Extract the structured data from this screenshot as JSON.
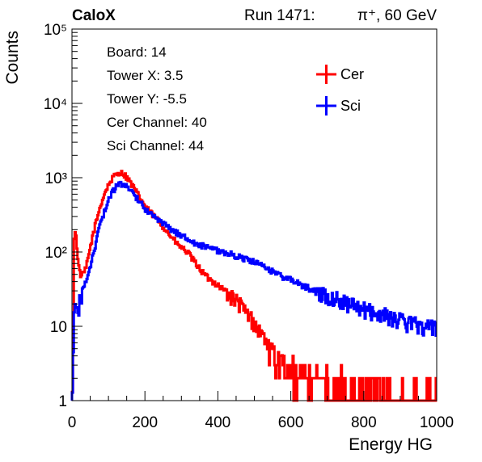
{
  "header": {
    "experiment": "CaloX",
    "run_label": "Run 1471:",
    "beam_label": "π⁺, 60 GeV"
  },
  "info_box": {
    "lines": [
      "Board: 14",
      "Tower X: 3.5",
      "Tower Y: -5.5",
      "Cer Channel: 40",
      "Sci Channel: 44"
    ]
  },
  "chart_data": {
    "type": "line",
    "title": "",
    "xlabel": "Energy HG",
    "ylabel": "Counts",
    "xlim": [
      0,
      1000
    ],
    "ylim": [
      1,
      100000
    ],
    "yscale": "log",
    "x_ticks": [
      "0",
      "200",
      "400",
      "600",
      "800",
      "1000"
    ],
    "y_ticks": [
      "1",
      "10",
      "10²",
      "10³",
      "10⁴",
      "10⁵"
    ],
    "legend_position": "top-right",
    "grid": false,
    "series": [
      {
        "name": "Cer",
        "color": "#ff0000",
        "points": [
          [
            2,
            1
          ],
          [
            5,
            150
          ],
          [
            10,
            190
          ],
          [
            15,
            100
          ],
          [
            20,
            55
          ],
          [
            25,
            48
          ],
          [
            30,
            50
          ],
          [
            35,
            55
          ],
          [
            40,
            65
          ],
          [
            45,
            85
          ],
          [
            50,
            115
          ],
          [
            60,
            190
          ],
          [
            70,
            300
          ],
          [
            80,
            450
          ],
          [
            90,
            620
          ],
          [
            100,
            800
          ],
          [
            110,
            960
          ],
          [
            120,
            1100
          ],
          [
            130,
            1180
          ],
          [
            140,
            1140
          ],
          [
            150,
            1020
          ],
          [
            160,
            870
          ],
          [
            170,
            720
          ],
          [
            180,
            600
          ],
          [
            190,
            500
          ],
          [
            200,
            420
          ],
          [
            210,
            360
          ],
          [
            220,
            320
          ],
          [
            230,
            290
          ],
          [
            240,
            255
          ],
          [
            250,
            220
          ],
          [
            260,
            190
          ],
          [
            270,
            165
          ],
          [
            280,
            145
          ],
          [
            290,
            125
          ],
          [
            300,
            115
          ],
          [
            310,
            105
          ],
          [
            320,
            95
          ],
          [
            330,
            80
          ],
          [
            340,
            70
          ],
          [
            350,
            60
          ],
          [
            360,
            52
          ],
          [
            370,
            46
          ],
          [
            380,
            42
          ],
          [
            400,
            36
          ],
          [
            420,
            30
          ],
          [
            440,
            24
          ],
          [
            460,
            20
          ],
          [
            470,
            17
          ],
          [
            480,
            15
          ],
          [
            490,
            13
          ],
          [
            500,
            11
          ],
          [
            510,
            9
          ],
          [
            520,
            8
          ],
          [
            530,
            7
          ],
          [
            540,
            5
          ],
          [
            550,
            4
          ],
          [
            560,
            4
          ],
          [
            570,
            3
          ],
          [
            580,
            3
          ],
          [
            600,
            2
          ],
          [
            620,
            2
          ],
          [
            650,
            2
          ],
          [
            700,
            1.5
          ],
          [
            750,
            1.5
          ],
          [
            800,
            1.2
          ],
          [
            850,
            1.1
          ],
          [
            900,
            1
          ],
          [
            1000,
            1
          ]
        ]
      },
      {
        "name": "Sci",
        "color": "#0000ff",
        "points": [
          [
            2,
            1
          ],
          [
            5,
            12
          ],
          [
            10,
            18
          ],
          [
            15,
            14
          ],
          [
            20,
            20
          ],
          [
            25,
            25
          ],
          [
            30,
            30
          ],
          [
            40,
            42
          ],
          [
            50,
            60
          ],
          [
            60,
            100
          ],
          [
            70,
            170
          ],
          [
            80,
            250
          ],
          [
            90,
            370
          ],
          [
            100,
            500
          ],
          [
            110,
            620
          ],
          [
            120,
            760
          ],
          [
            130,
            820
          ],
          [
            140,
            810
          ],
          [
            150,
            760
          ],
          [
            160,
            680
          ],
          [
            170,
            600
          ],
          [
            180,
            520
          ],
          [
            190,
            450
          ],
          [
            200,
            390
          ],
          [
            210,
            345
          ],
          [
            220,
            310
          ],
          [
            240,
            260
          ],
          [
            260,
            220
          ],
          [
            280,
            190
          ],
          [
            300,
            170
          ],
          [
            320,
            150
          ],
          [
            340,
            130
          ],
          [
            360,
            120
          ],
          [
            380,
            110
          ],
          [
            400,
            105
          ],
          [
            420,
            98
          ],
          [
            440,
            92
          ],
          [
            460,
            85
          ],
          [
            480,
            80
          ],
          [
            500,
            73
          ],
          [
            520,
            65
          ],
          [
            540,
            58
          ],
          [
            560,
            52
          ],
          [
            580,
            46
          ],
          [
            600,
            42
          ],
          [
            620,
            38
          ],
          [
            640,
            34
          ],
          [
            660,
            31
          ],
          [
            680,
            28
          ],
          [
            700,
            26
          ],
          [
            720,
            24
          ],
          [
            740,
            22
          ],
          [
            760,
            20
          ],
          [
            780,
            18
          ],
          [
            800,
            17
          ],
          [
            820,
            16
          ],
          [
            840,
            15
          ],
          [
            860,
            14
          ],
          [
            880,
            13
          ],
          [
            900,
            12
          ],
          [
            920,
            11
          ],
          [
            940,
            11
          ],
          [
            960,
            10
          ],
          [
            980,
            10
          ],
          [
            1000,
            9
          ]
        ]
      }
    ]
  },
  "colors": {
    "cer": "#ff0000",
    "sci": "#0000ff",
    "axis": "#000000"
  }
}
